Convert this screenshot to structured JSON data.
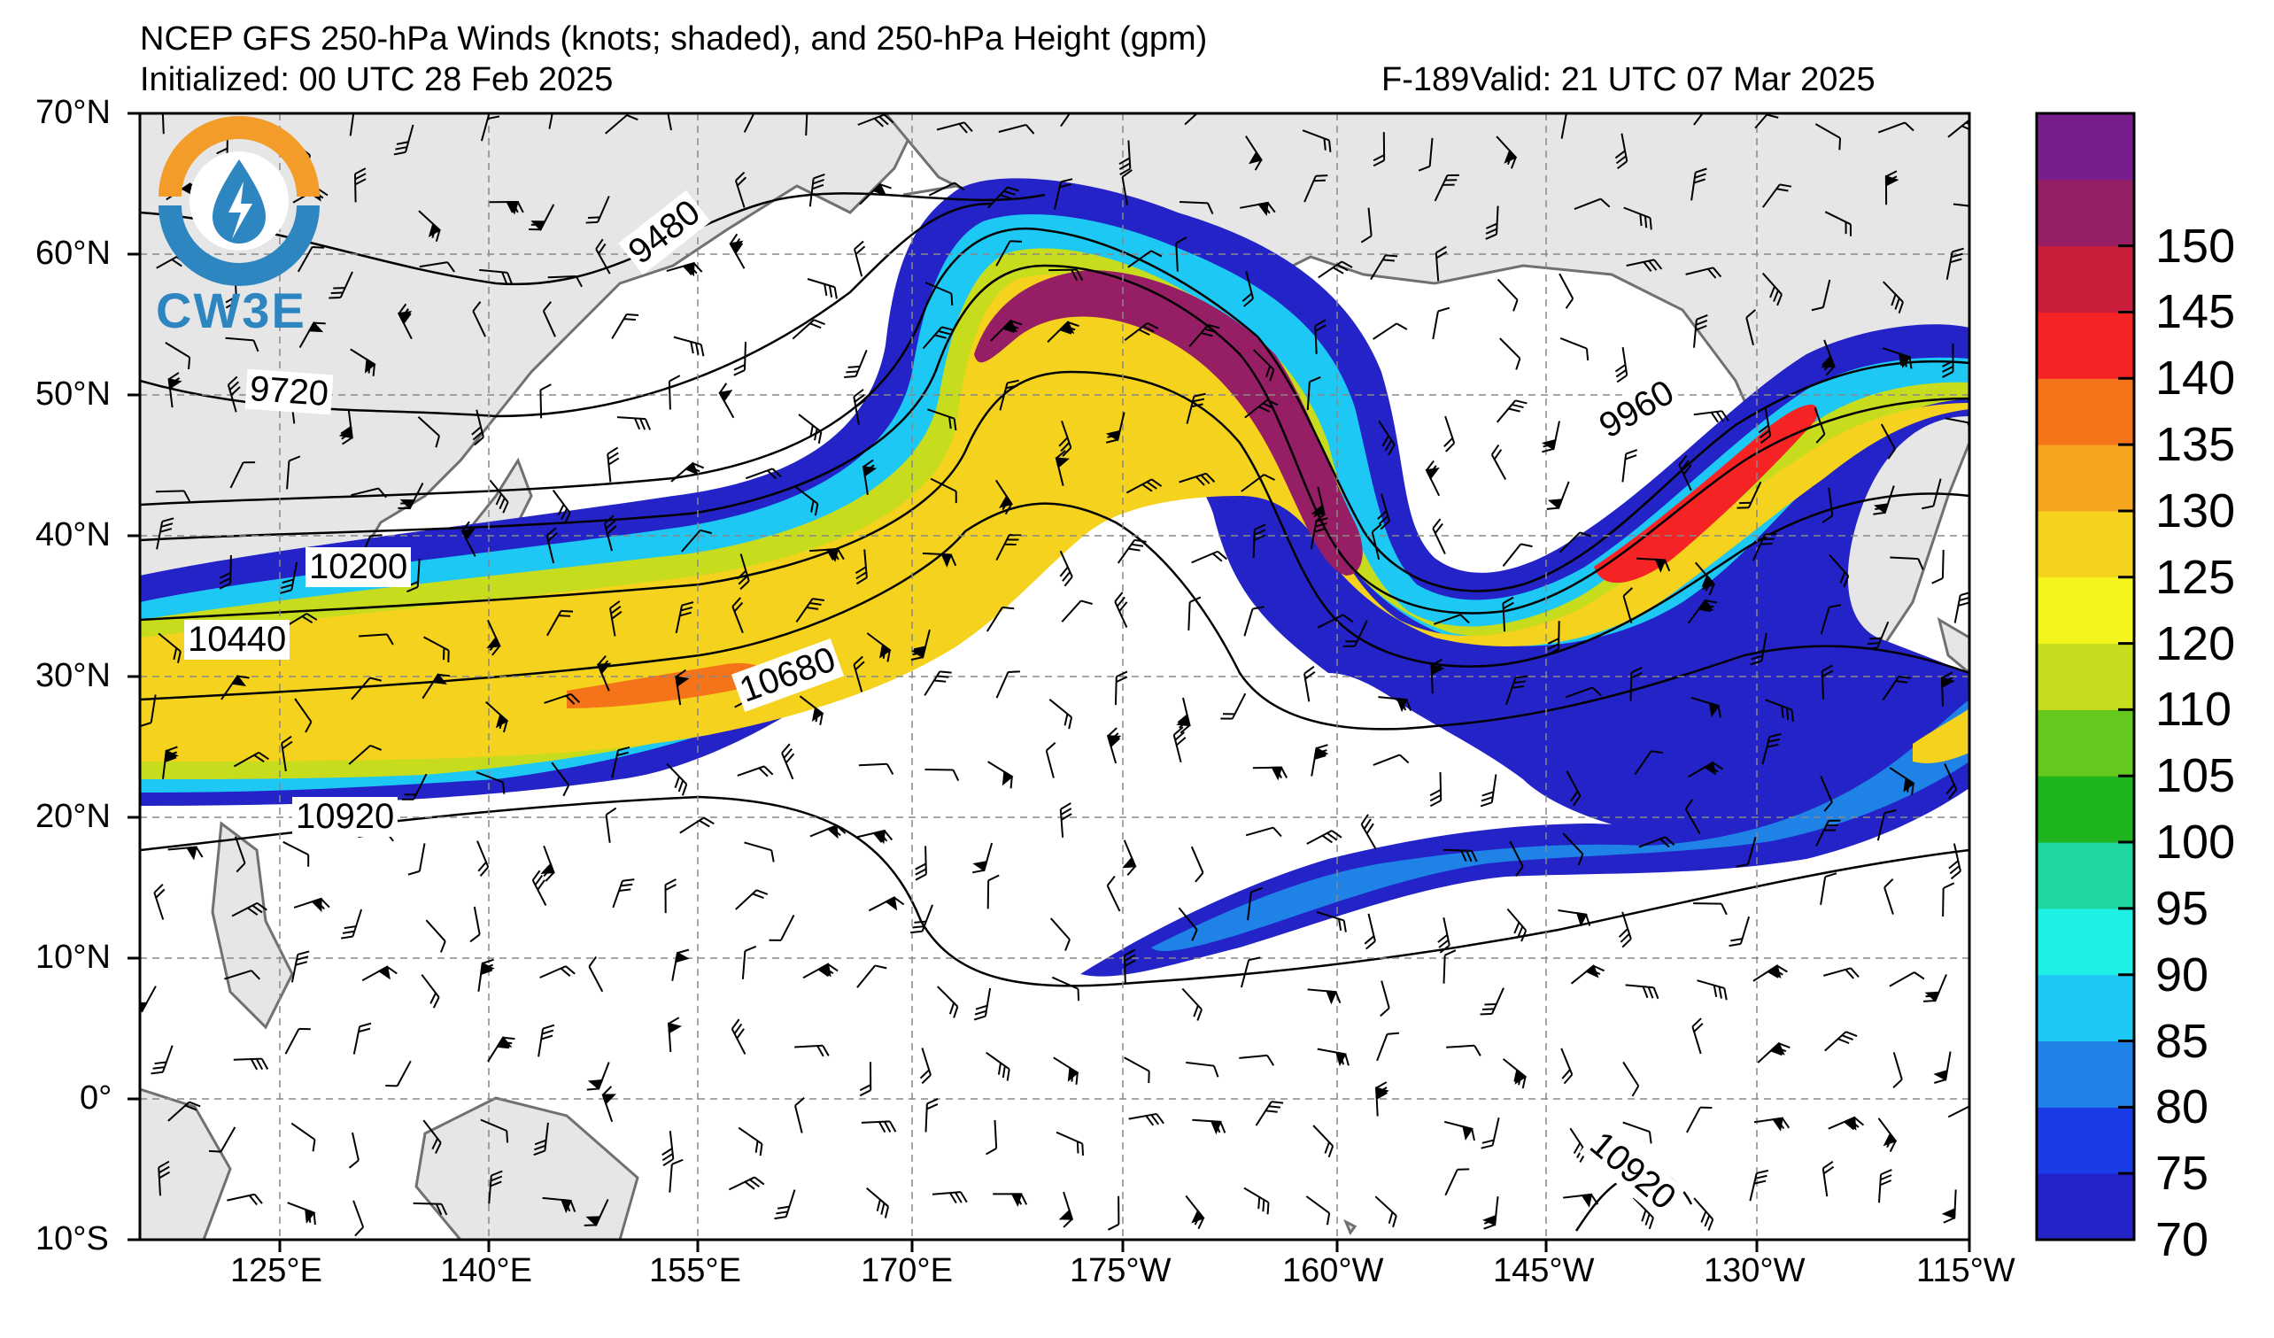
{
  "header": {
    "title": "NCEP GFS 250-hPa Winds (knots; shaded), and 250-hPa Height (gpm)",
    "initialized": "Initialized: 00 UTC 28 Feb 2025",
    "forecast_hour": "F-189",
    "valid": "Valid: 21 UTC 07 Mar 2025"
  },
  "logo": {
    "text": "CW3E"
  },
  "lat_labels": [
    "70°N",
    "60°N",
    "50°N",
    "40°N",
    "30°N",
    "20°N",
    "10°N",
    "0°",
    "10°S"
  ],
  "lon_labels": [
    "125°E",
    "140°E",
    "155°E",
    "170°E",
    "175°W",
    "160°W",
    "145°W",
    "130°W",
    "115°W"
  ],
  "height_labels": [
    {
      "value": "9480"
    },
    {
      "value": "9720"
    },
    {
      "value": "10200"
    },
    {
      "value": "10440"
    },
    {
      "value": "10680"
    },
    {
      "value": "10920"
    },
    {
      "value": "9960"
    },
    {
      "value": "10920"
    }
  ],
  "colorbar": {
    "labels": [
      "70",
      "75",
      "80",
      "85",
      "90",
      "95",
      "100",
      "105",
      "110",
      "120",
      "125",
      "130",
      "135",
      "140",
      "145",
      "150"
    ],
    "colors": [
      "#2323c8",
      "#1a3be6",
      "#1e82e6",
      "#1ec8f5",
      "#1ef0e6",
      "#1ed7a0",
      "#1eb41e",
      "#64c81e",
      "#c8dc1e",
      "#f5f51e",
      "#f5d21e",
      "#f5a51e",
      "#f57319",
      "#f52323",
      "#c81e3c",
      "#961e64",
      "#781e8c"
    ]
  },
  "map_data": {
    "region": "North Pacific, 10°S–70°N, 115°E–115°W",
    "contour_levels_gpm": [
      9480,
      9720,
      9960,
      10200,
      10440,
      10680,
      10920
    ],
    "wind_shading_knots": {
      "min": 70,
      "max": 155
    },
    "features": [
      "Zonal jet from Japan east to ~170°E",
      "High-amplitude ridge near 175°W",
      "Trough near 160°W",
      "Jet into Pacific Northwest (~125°W)",
      "Subtropical jet streak 15–25°N"
    ]
  }
}
